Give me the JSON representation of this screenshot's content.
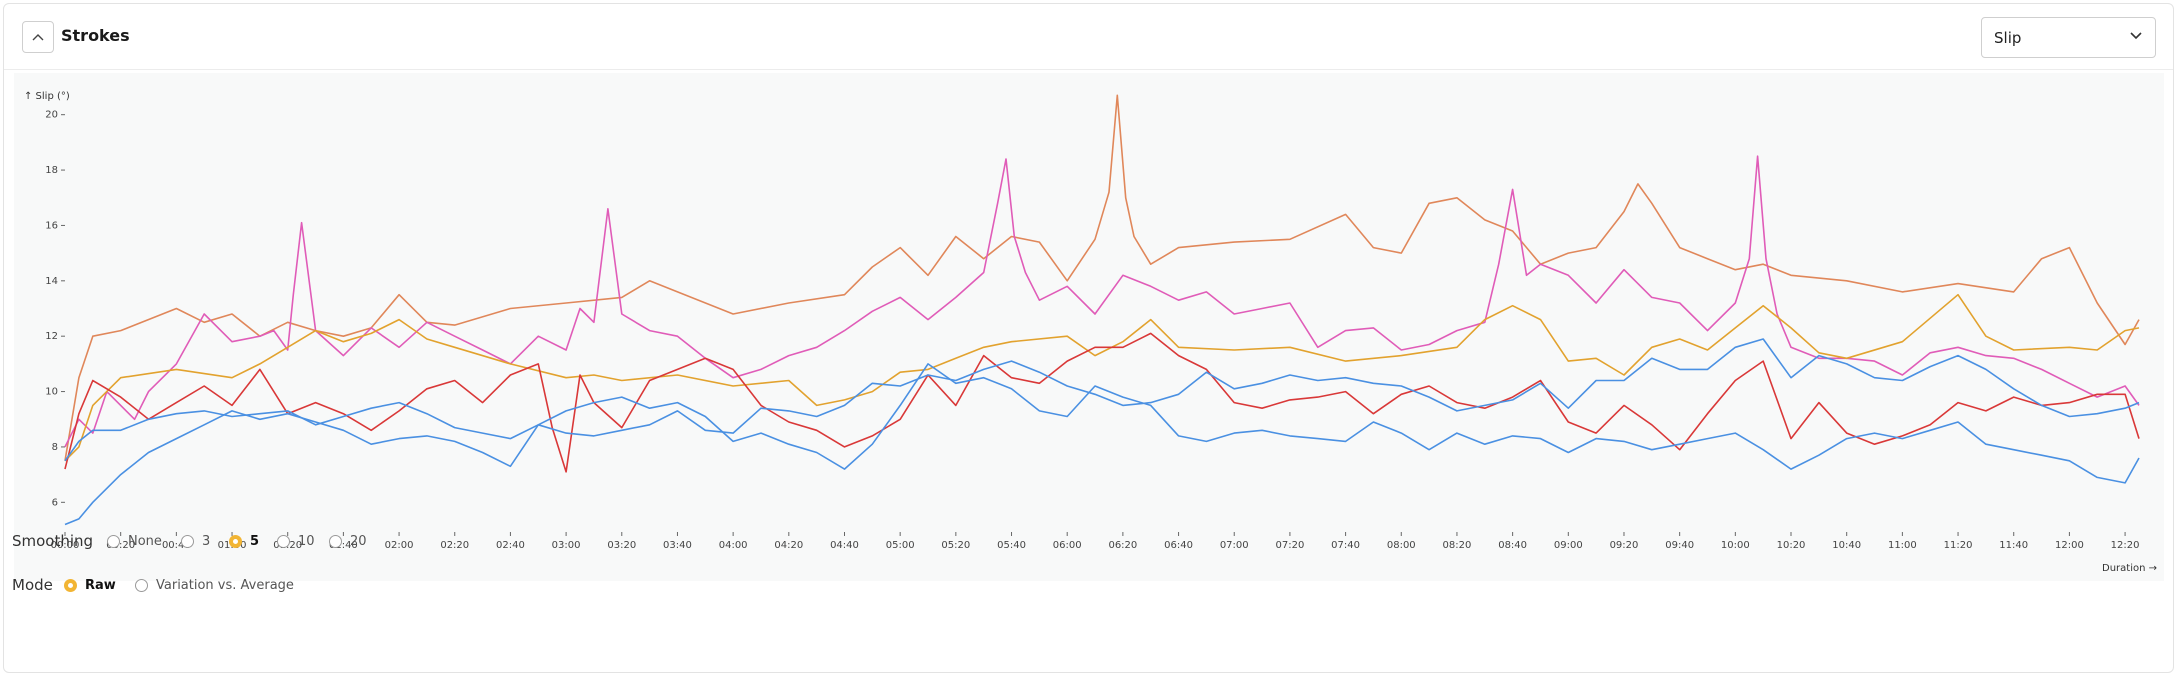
{
  "header": {
    "title": "Strokes",
    "metric_select": "Slip"
  },
  "chart_data": {
    "type": "line",
    "ylabel": "↑ Slip (°)",
    "xlabel": "Duration →",
    "ylim": [
      5,
      21
    ],
    "xlim": [
      0,
      745
    ],
    "y_ticks": [
      6,
      8,
      10,
      12,
      14,
      16,
      18,
      20
    ],
    "x_ticks": [
      "00:00",
      "00:20",
      "00:40",
      "01:00",
      "01:20",
      "01:40",
      "02:00",
      "02:20",
      "02:40",
      "03:00",
      "03:20",
      "03:40",
      "04:00",
      "04:20",
      "04:40",
      "05:00",
      "05:20",
      "05:40",
      "06:00",
      "06:20",
      "06:40",
      "07:00",
      "07:20",
      "07:40",
      "08:00",
      "08:20",
      "08:40",
      "09:00",
      "09:20",
      "09:40",
      "10:00",
      "10:20",
      "10:40",
      "11:00",
      "11:20",
      "11:40",
      "12:00",
      "12:20"
    ],
    "x_tick_seconds": [
      0,
      20,
      40,
      60,
      80,
      100,
      120,
      140,
      160,
      180,
      200,
      220,
      240,
      260,
      280,
      300,
      320,
      340,
      360,
      380,
      400,
      420,
      440,
      460,
      480,
      500,
      520,
      540,
      560,
      580,
      600,
      620,
      640,
      660,
      680,
      700,
      720,
      740
    ],
    "grid": false,
    "legend": "none",
    "series": [
      {
        "color": "#e0875a",
        "x": [
          0,
          5,
          10,
          20,
          40,
          50,
          60,
          70,
          80,
          90,
          100,
          110,
          120,
          130,
          140,
          160,
          180,
          200,
          210,
          220,
          240,
          260,
          280,
          290,
          300,
          310,
          320,
          330,
          340,
          350,
          360,
          370,
          375,
          378,
          381,
          384,
          390,
          400,
          420,
          440,
          460,
          470,
          480,
          490,
          500,
          510,
          520,
          530,
          540,
          550,
          560,
          565,
          570,
          580,
          590,
          600,
          610,
          620,
          640,
          660,
          680,
          700,
          710,
          720,
          730,
          740,
          745
        ],
        "y": [
          7.5,
          10.5,
          12,
          12.2,
          13,
          12.5,
          12.8,
          12,
          12.5,
          12.2,
          12,
          12.3,
          13.5,
          12.5,
          12.4,
          13,
          13.2,
          13.4,
          14,
          13.6,
          12.8,
          13.2,
          13.5,
          14.5,
          15.2,
          14.2,
          15.6,
          14.8,
          15.6,
          15.4,
          14,
          15.5,
          17.2,
          20.7,
          17,
          15.6,
          14.6,
          15.2,
          15.4,
          15.5,
          16.4,
          15.2,
          15,
          16.8,
          17,
          16.2,
          15.8,
          14.6,
          15,
          15.2,
          16.5,
          17.5,
          16.8,
          15.2,
          14.8,
          14.4,
          14.6,
          14.2,
          14,
          13.6,
          13.9,
          13.6,
          14.8,
          15.2,
          13.2,
          11.7,
          12.6
        ]
      },
      {
        "color": "#e05cb8",
        "x": [
          0,
          5,
          10,
          15,
          20,
          25,
          30,
          40,
          50,
          60,
          70,
          75,
          80,
          82,
          85,
          90,
          100,
          110,
          120,
          130,
          140,
          150,
          160,
          170,
          180,
          185,
          190,
          195,
          200,
          210,
          220,
          230,
          240,
          250,
          260,
          270,
          280,
          290,
          300,
          310,
          320,
          330,
          335,
          338,
          341,
          345,
          350,
          360,
          370,
          380,
          390,
          400,
          410,
          420,
          430,
          440,
          450,
          460,
          470,
          480,
          490,
          500,
          510,
          515,
          520,
          525,
          530,
          540,
          550,
          560,
          570,
          580,
          590,
          600,
          605,
          608,
          611,
          615,
          620,
          630,
          640,
          650,
          660,
          670,
          680,
          690,
          700,
          710,
          720,
          730,
          740,
          745
        ],
        "y": [
          8,
          9,
          8.5,
          10,
          9.5,
          9,
          10,
          11,
          12.8,
          11.8,
          12,
          12.2,
          11.5,
          13.5,
          16.1,
          12.2,
          11.3,
          12.3,
          11.6,
          12.5,
          12,
          11.5,
          11,
          12,
          11.5,
          13,
          12.5,
          16.6,
          12.8,
          12.2,
          12,
          11.2,
          10.5,
          10.8,
          11.3,
          11.6,
          12.2,
          12.9,
          13.4,
          12.6,
          13.4,
          14.3,
          16.8,
          18.4,
          15.6,
          14.3,
          13.3,
          13.8,
          12.8,
          14.2,
          13.8,
          13.3,
          13.6,
          12.8,
          13,
          13.2,
          11.6,
          12.2,
          12.3,
          11.5,
          11.7,
          12.2,
          12.5,
          14.6,
          17.3,
          14.2,
          14.6,
          14.2,
          13.2,
          14.4,
          13.4,
          13.2,
          12.2,
          13.2,
          14.8,
          18.5,
          14.8,
          12.8,
          11.6,
          11.2,
          11.2,
          11.1,
          10.6,
          11.4,
          11.6,
          11.3,
          11.2,
          10.8,
          10.3,
          9.8,
          10.2,
          9.5
        ]
      },
      {
        "color": "#e2a22e",
        "x": [
          0,
          5,
          10,
          20,
          40,
          60,
          70,
          80,
          90,
          100,
          110,
          120,
          130,
          140,
          160,
          180,
          190,
          200,
          220,
          240,
          260,
          270,
          280,
          290,
          300,
          310,
          320,
          330,
          340,
          360,
          370,
          380,
          390,
          400,
          420,
          440,
          460,
          480,
          500,
          510,
          520,
          530,
          540,
          550,
          560,
          570,
          580,
          590,
          600,
          610,
          620,
          630,
          640,
          660,
          680,
          690,
          700,
          720,
          730,
          740,
          745
        ],
        "y": [
          7.5,
          8,
          9.5,
          10.5,
          10.8,
          10.5,
          11,
          11.6,
          12.2,
          11.8,
          12.1,
          12.6,
          11.9,
          11.6,
          11,
          10.5,
          10.6,
          10.4,
          10.6,
          10.2,
          10.4,
          9.5,
          9.7,
          10,
          10.7,
          10.8,
          11.2,
          11.6,
          11.8,
          12,
          11.3,
          11.8,
          12.6,
          11.6,
          11.5,
          11.6,
          11.1,
          11.3,
          11.6,
          12.6,
          13.1,
          12.6,
          11.1,
          11.2,
          10.6,
          11.6,
          11.9,
          11.5,
          12.3,
          13.1,
          12.3,
          11.4,
          11.2,
          11.8,
          13.5,
          12,
          11.5,
          11.6,
          11.5,
          12.2,
          12.3
        ]
      },
      {
        "color": "#d93838",
        "x": [
          0,
          5,
          10,
          20,
          30,
          40,
          50,
          60,
          70,
          80,
          90,
          100,
          110,
          120,
          130,
          140,
          150,
          160,
          170,
          175,
          180,
          185,
          190,
          200,
          210,
          220,
          230,
          240,
          250,
          260,
          270,
          280,
          290,
          300,
          310,
          320,
          330,
          340,
          350,
          360,
          370,
          380,
          390,
          400,
          410,
          420,
          430,
          440,
          450,
          460,
          470,
          480,
          490,
          500,
          510,
          520,
          530,
          540,
          550,
          560,
          570,
          580,
          590,
          600,
          610,
          620,
          630,
          640,
          650,
          660,
          670,
          680,
          690,
          700,
          710,
          720,
          730,
          740,
          745
        ],
        "y": [
          7.2,
          9.2,
          10.4,
          9.8,
          9,
          9.6,
          10.2,
          9.5,
          10.8,
          9.2,
          9.6,
          9.2,
          8.6,
          9.3,
          10.1,
          10.4,
          9.6,
          10.6,
          11,
          8.7,
          7.1,
          10.6,
          9.6,
          8.7,
          10.4,
          10.8,
          11.2,
          10.8,
          9.5,
          8.9,
          8.6,
          8,
          8.4,
          9,
          10.6,
          9.5,
          11.3,
          10.5,
          10.3,
          11.1,
          11.6,
          11.6,
          12.1,
          11.3,
          10.8,
          9.6,
          9.4,
          9.7,
          9.8,
          10,
          9.2,
          9.9,
          10.2,
          9.6,
          9.4,
          9.8,
          10.4,
          8.9,
          8.5,
          9.5,
          8.8,
          7.9,
          9.2,
          10.4,
          11.1,
          8.3,
          9.6,
          8.5,
          8.1,
          8.4,
          8.8,
          9.6,
          9.3,
          9.8,
          9.5,
          9.6,
          9.9,
          9.9,
          8.3
        ]
      },
      {
        "color": "#4a90e2",
        "x": [
          0,
          5,
          10,
          20,
          30,
          40,
          50,
          60,
          70,
          80,
          90,
          100,
          110,
          120,
          130,
          140,
          150,
          160,
          170,
          180,
          190,
          200,
          210,
          220,
          230,
          240,
          250,
          260,
          270,
          280,
          290,
          300,
          310,
          320,
          330,
          340,
          350,
          360,
          370,
          380,
          390,
          400,
          410,
          420,
          430,
          440,
          450,
          460,
          470,
          480,
          490,
          500,
          510,
          520,
          530,
          540,
          550,
          560,
          570,
          580,
          590,
          600,
          610,
          620,
          630,
          640,
          650,
          660,
          670,
          680,
          690,
          700,
          710,
          720,
          730,
          740,
          745
        ],
        "y": [
          5.2,
          5.4,
          6,
          7,
          7.8,
          8.3,
          8.8,
          9.3,
          9,
          9.2,
          8.9,
          8.6,
          8.1,
          8.3,
          8.4,
          8.2,
          7.8,
          7.3,
          8.8,
          9.3,
          9.6,
          9.8,
          9.4,
          9.6,
          9.1,
          8.2,
          8.5,
          8.1,
          7.8,
          7.2,
          8.1,
          9.5,
          11,
          10.3,
          10.5,
          10.1,
          9.3,
          9.1,
          10.2,
          9.8,
          9.5,
          8.4,
          8.2,
          8.5,
          8.6,
          8.4,
          8.3,
          8.2,
          8.9,
          8.5,
          7.9,
          8.5,
          8.1,
          8.4,
          8.3,
          7.8,
          8.3,
          8.2,
          7.9,
          8.1,
          8.3,
          8.5,
          7.9,
          7.2,
          7.7,
          8.3,
          8.5,
          8.3,
          8.6,
          8.9,
          8.1,
          7.9,
          7.7,
          7.5,
          6.9,
          6.7,
          7.6
        ]
      },
      {
        "color": "#4a90e2",
        "x": [
          0,
          5,
          10,
          20,
          30,
          40,
          50,
          60,
          70,
          80,
          90,
          100,
          110,
          120,
          130,
          140,
          150,
          160,
          170,
          180,
          190,
          200,
          210,
          220,
          230,
          240,
          250,
          260,
          270,
          280,
          290,
          300,
          310,
          320,
          330,
          340,
          350,
          360,
          370,
          380,
          390,
          400,
          410,
          420,
          430,
          440,
          450,
          460,
          470,
          480,
          490,
          500,
          510,
          520,
          530,
          540,
          550,
          560,
          570,
          580,
          590,
          600,
          610,
          620,
          630,
          640,
          650,
          660,
          670,
          680,
          690,
          700,
          710,
          720,
          730,
          740,
          745
        ],
        "y": [
          7.5,
          8.2,
          8.6,
          8.6,
          9,
          9.2,
          9.3,
          9.1,
          9.2,
          9.3,
          8.8,
          9.1,
          9.4,
          9.6,
          9.2,
          8.7,
          8.5,
          8.3,
          8.8,
          8.5,
          8.4,
          8.6,
          8.8,
          9.3,
          8.6,
          8.5,
          9.4,
          9.3,
          9.1,
          9.5,
          10.3,
          10.2,
          10.6,
          10.4,
          10.8,
          11.1,
          10.7,
          10.2,
          9.9,
          9.5,
          9.6,
          9.9,
          10.7,
          10.1,
          10.3,
          10.6,
          10.4,
          10.5,
          10.3,
          10.2,
          9.8,
          9.3,
          9.5,
          9.7,
          10.3,
          9.4,
          10.4,
          10.4,
          11.2,
          10.8,
          10.8,
          11.6,
          11.9,
          10.5,
          11.3,
          11,
          10.5,
          10.4,
          10.9,
          11.3,
          10.8,
          10.1,
          9.5,
          9.1,
          9.2,
          9.4,
          9.6
        ]
      }
    ]
  },
  "smoothing": {
    "label": "Smoothing",
    "options": [
      "None",
      "3",
      "5",
      "10",
      "20"
    ],
    "selected": "5"
  },
  "mode": {
    "label": "Mode",
    "options": [
      "Raw",
      "Variation vs. Average"
    ],
    "selected": "Raw"
  }
}
